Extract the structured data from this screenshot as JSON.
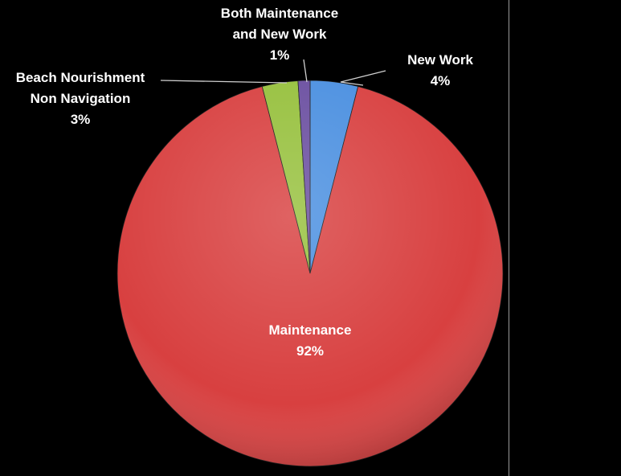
{
  "chart_data": {
    "type": "pie",
    "categories": [
      "New Work",
      "Maintenance",
      "Beach Nourishment Non Navigation",
      "Both Maintenance and New Work"
    ],
    "values": [
      4,
      92,
      3,
      1
    ],
    "value_labels": [
      "4%",
      "92%",
      "3%",
      "1%"
    ],
    "colors": [
      "#4a8fe0",
      "#d84040",
      "#96c03c",
      "#6a4ea0"
    ],
    "legend": "none",
    "label_lines": [
      [
        "New Work"
      ],
      [
        "Maintenance"
      ],
      [
        "Beach Nourishment",
        "Non Navigation"
      ],
      [
        "Both Maintenance",
        "and New Work"
      ]
    ]
  }
}
